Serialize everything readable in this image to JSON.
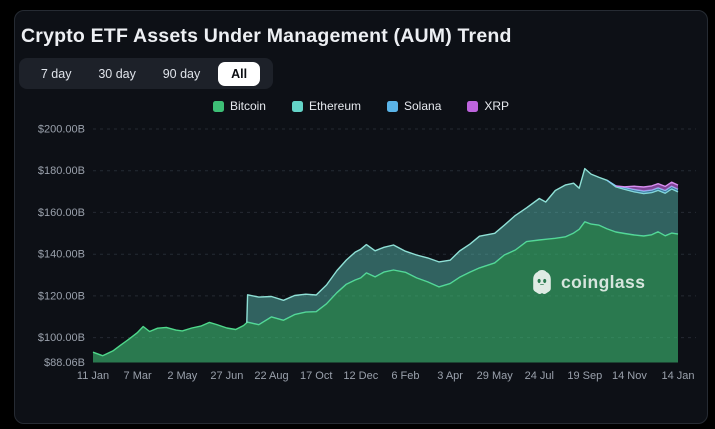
{
  "window": {
    "page_bg": "#000000",
    "card_bg": "#0d1016",
    "card_border": "#262b33"
  },
  "header": {
    "title": "Crypto ETF Assets Under Management (AUM) Trend"
  },
  "range_tabs": {
    "items": [
      {
        "label": "7 day",
        "active": false
      },
      {
        "label": "30 day",
        "active": false
      },
      {
        "label": "90 day",
        "active": false
      },
      {
        "label": "All",
        "active": true
      }
    ]
  },
  "watermark": {
    "text": "coinglass",
    "icon": "coinglass-ghost"
  },
  "chart_data": {
    "type": "area",
    "stacked": true,
    "title": "Crypto ETF Assets Under Management (AUM) Trend",
    "unit": "USD billions",
    "x_start": "2024-01-11",
    "x_end": "2026-01-14",
    "legend_position": "top",
    "grid": {
      "style": "horizontal-dashed",
      "color": "#252a33",
      "dash": "3,4"
    },
    "axis_text_color": "#9aa1ac",
    "y_axis": {
      "min": 88.06,
      "max": 200,
      "gridline_values": [
        200,
        180,
        160,
        140,
        120,
        100
      ],
      "labels": [
        {
          "value": 200,
          "label": "$200.00B"
        },
        {
          "value": 180,
          "label": "$180.00B"
        },
        {
          "value": 160,
          "label": "$160.00B"
        },
        {
          "value": 140,
          "label": "$140.00B"
        },
        {
          "value": 120,
          "label": "$120.00B"
        },
        {
          "value": 100,
          "label": "$100.00B"
        },
        {
          "value": 88.06,
          "label": "$88.06B"
        }
      ]
    },
    "x_ticks": [
      {
        "date": "2024-01-11",
        "label": "11 Jan"
      },
      {
        "date": "2024-03-07",
        "label": "7 Mar"
      },
      {
        "date": "2024-05-02",
        "label": "2 May"
      },
      {
        "date": "2024-06-27",
        "label": "27 Jun"
      },
      {
        "date": "2024-08-22",
        "label": "22 Aug"
      },
      {
        "date": "2024-10-17",
        "label": "17 Oct"
      },
      {
        "date": "2024-12-12",
        "label": "12 Dec"
      },
      {
        "date": "2025-02-06",
        "label": "6 Feb"
      },
      {
        "date": "2025-04-03",
        "label": "3 Apr"
      },
      {
        "date": "2025-05-29",
        "label": "29 May"
      },
      {
        "date": "2025-07-24",
        "label": "24 Jul"
      },
      {
        "date": "2025-09-19",
        "label": "19 Sep"
      },
      {
        "date": "2025-11-14",
        "label": "14 Nov"
      },
      {
        "date": "2026-01-14",
        "label": "14 Jan"
      }
    ],
    "dates": [
      "2024-01-11",
      "2024-01-23",
      "2024-02-05",
      "2024-02-15",
      "2024-02-26",
      "2024-03-07",
      "2024-03-14",
      "2024-03-22",
      "2024-04-01",
      "2024-04-12",
      "2024-04-24",
      "2024-05-02",
      "2024-05-14",
      "2024-05-26",
      "2024-06-05",
      "2024-06-14",
      "2024-06-27",
      "2024-07-08",
      "2024-07-18",
      "2024-07-22",
      "2024-07-23",
      "2024-08-06",
      "2024-08-22",
      "2024-09-06",
      "2024-09-20",
      "2024-10-04",
      "2024-10-17",
      "2024-10-30",
      "2024-11-12",
      "2024-11-24",
      "2024-12-05",
      "2024-12-12",
      "2024-12-19",
      "2024-12-30",
      "2025-01-10",
      "2025-01-22",
      "2025-02-06",
      "2025-02-20",
      "2025-03-06",
      "2025-03-20",
      "2025-04-03",
      "2025-04-15",
      "2025-04-28",
      "2025-05-10",
      "2025-05-29",
      "2025-06-10",
      "2025-06-24",
      "2025-07-08",
      "2025-07-24",
      "2025-08-01",
      "2025-08-13",
      "2025-08-26",
      "2025-09-05",
      "2025-09-12",
      "2025-09-19",
      "2025-09-27",
      "2025-10-07",
      "2025-10-17",
      "2025-10-28",
      "2025-11-08",
      "2025-11-20",
      "2025-12-02",
      "2025-12-12",
      "2025-12-20",
      "2025-12-29",
      "2026-01-06",
      "2026-01-14"
    ],
    "series": [
      {
        "name": "Bitcoin",
        "color": "#3dbf76",
        "fill": "rgba(61,191,118,0.60)",
        "stroke": "#4fd88b",
        "values": [
          93,
          91.3,
          93.6,
          96.5,
          99.5,
          102.5,
          105.3,
          102.9,
          104.5,
          104.9,
          103.6,
          103.2,
          104.6,
          105.6,
          107.3,
          106.3,
          104.6,
          103.9,
          105.8,
          107.2,
          107.4,
          106.2,
          109.9,
          108.3,
          111,
          112.2,
          112.4,
          116.2,
          121.5,
          125.6,
          127.6,
          128.6,
          131,
          129.1,
          131.4,
          132.4,
          131.3,
          128.6,
          126.7,
          124.3,
          125.9,
          128.9,
          131.4,
          133.4,
          135.8,
          139.6,
          142,
          146,
          146.8,
          147.1,
          147.6,
          148.3,
          150.1,
          151.9,
          155.5,
          154.4,
          153.9,
          152.1,
          150.6,
          149.9,
          149.2,
          148.7,
          149.3,
          150.7,
          148.8,
          150.1,
          149.6
        ]
      },
      {
        "name": "Ethereum",
        "color": "#64d4c8",
        "fill": "rgba(100,212,200,0.42)",
        "stroke": "#8fe0d6",
        "values": [
          0,
          0,
          0,
          0,
          0,
          0,
          0,
          0,
          0,
          0,
          0,
          0,
          0,
          0,
          0,
          0,
          0,
          0,
          0,
          0,
          13.1,
          13.2,
          9.8,
          9.6,
          9.2,
          8.6,
          8,
          9,
          10.6,
          11.6,
          13.4,
          13.8,
          13.6,
          12.5,
          11.9,
          12,
          10.1,
          11,
          11.5,
          12,
          11.2,
          12.6,
          13.4,
          15.2,
          14.2,
          14.3,
          16.6,
          16.2,
          19.9,
          17.9,
          22.9,
          24.9,
          23.9,
          19.7,
          25.5,
          24,
          22.9,
          23.3,
          21.7,
          21.2,
          20.7,
          20.4,
          20.2,
          19.9,
          20.4,
          21.2,
          20.3
        ]
      },
      {
        "name": "Solana",
        "color": "#5ab4e8",
        "fill": "rgba(90,180,232,0.60)",
        "stroke": "#86ccf2",
        "values": [
          0,
          0,
          0,
          0,
          0,
          0,
          0,
          0,
          0,
          0,
          0,
          0,
          0,
          0,
          0,
          0,
          0,
          0,
          0,
          0,
          0,
          0,
          0,
          0,
          0,
          0,
          0,
          0,
          0,
          0,
          0,
          0,
          0,
          0,
          0,
          0,
          0,
          0,
          0,
          0,
          0,
          0,
          0,
          0,
          0,
          0,
          0,
          0,
          0,
          0,
          0,
          0,
          0,
          0,
          0,
          0,
          0,
          0,
          0.4,
          0.9,
          1.1,
          1.2,
          1.2,
          1.2,
          1.3,
          1.3,
          1.2
        ]
      },
      {
        "name": "XRP",
        "color": "#bd64dd",
        "fill": "rgba(189,100,221,0.65)",
        "stroke": "#d78df0",
        "values": [
          0,
          0,
          0,
          0,
          0,
          0,
          0,
          0,
          0,
          0,
          0,
          0,
          0,
          0,
          0,
          0,
          0,
          0,
          0,
          0,
          0,
          0,
          0,
          0,
          0,
          0,
          0,
          0,
          0,
          0,
          0,
          0,
          0,
          0,
          0,
          0,
          0,
          0,
          0,
          0,
          0,
          0,
          0,
          0,
          0,
          0,
          0,
          0,
          0,
          0,
          0,
          0,
          0,
          0,
          0,
          0,
          0,
          0,
          0,
          0.3,
          1.6,
          1.9,
          2,
          2,
          2,
          1.9,
          2
        ]
      }
    ]
  }
}
